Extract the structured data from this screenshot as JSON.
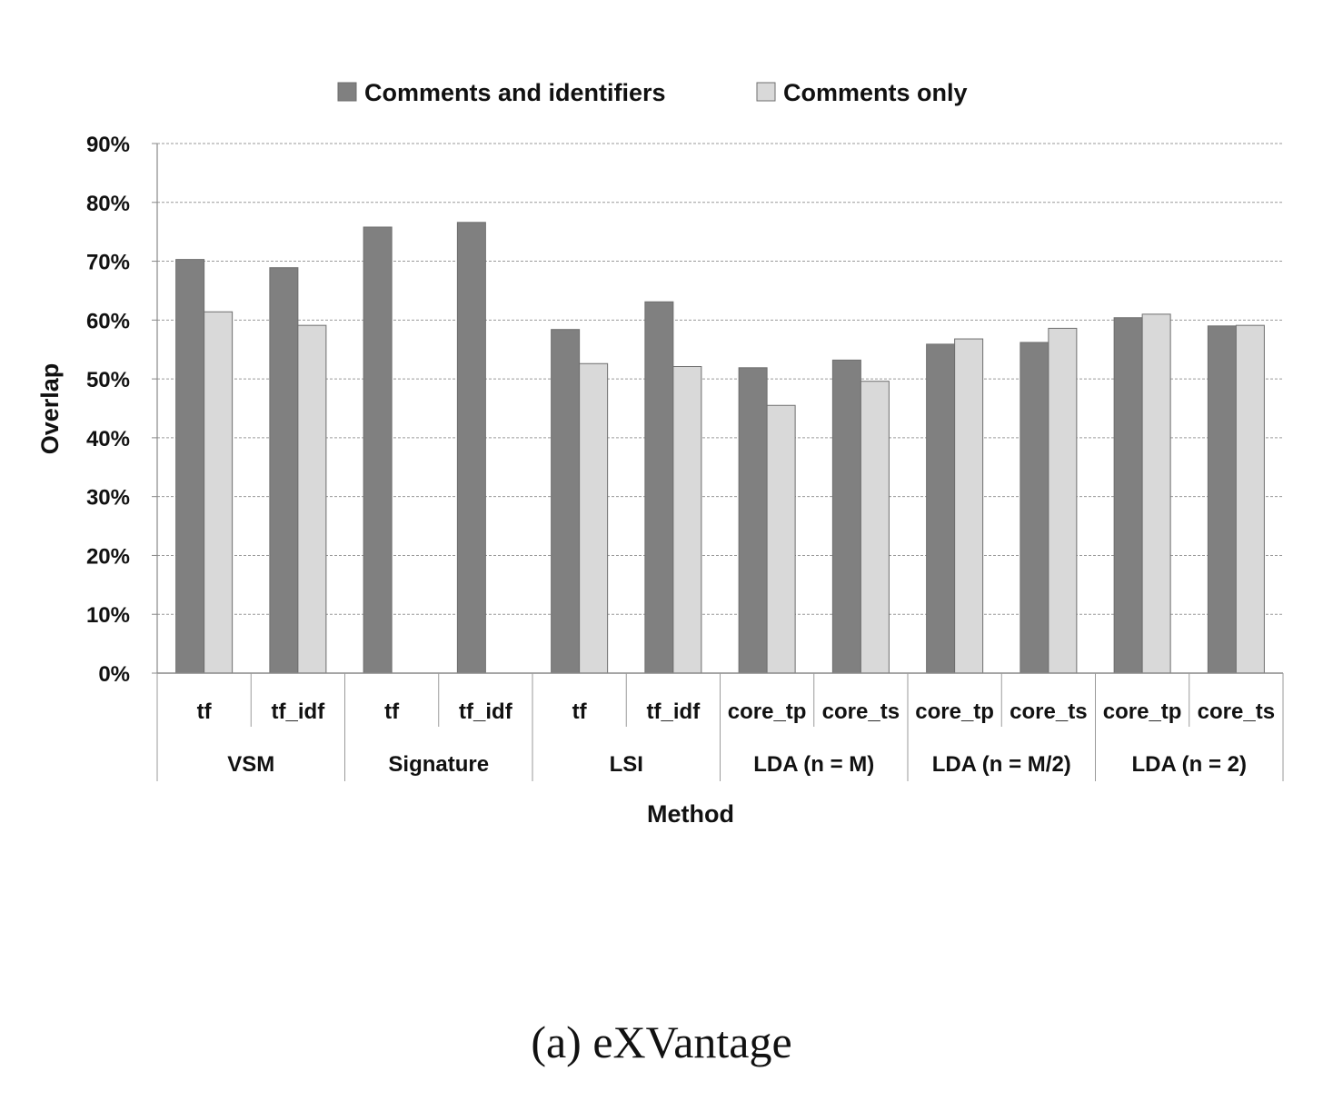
{
  "chart_data": {
    "type": "bar",
    "xlabel": "Method",
    "ylabel": "Overlap",
    "ylim": [
      0,
      90
    ],
    "yticks": [
      "0%",
      "10%",
      "20%",
      "30%",
      "40%",
      "50%",
      "60%",
      "70%",
      "80%",
      "90%"
    ],
    "grid": true,
    "legend_position": "top-center",
    "groups": [
      {
        "name": "VSM",
        "categories": [
          "tf",
          "tf_idf"
        ]
      },
      {
        "name": "Signature",
        "categories": [
          "tf",
          "tf_idf"
        ]
      },
      {
        "name": "LSI",
        "categories": [
          "tf",
          "tf_idf"
        ]
      },
      {
        "name": "LDA (n = M)",
        "categories": [
          "core_tp",
          "core_ts"
        ]
      },
      {
        "name": "LDA (n = M/2)",
        "categories": [
          "core_tp",
          "core_ts"
        ]
      },
      {
        "name": "LDA (n = 2)",
        "categories": [
          "core_tp",
          "core_ts"
        ]
      }
    ],
    "series": [
      {
        "name": "Comments and identifiers",
        "color": "#808080",
        "values": [
          70.3,
          68.9,
          75.8,
          76.6,
          58.4,
          63.1,
          51.9,
          53.2,
          55.9,
          56.2,
          60.4,
          59.0
        ]
      },
      {
        "name": "Comments only",
        "color": "#d9d9d9",
        "values": [
          61.4,
          59.1,
          null,
          null,
          52.6,
          52.1,
          45.5,
          49.6,
          56.8,
          58.6,
          61.0,
          59.1
        ]
      }
    ]
  },
  "caption": "(a)  eXVantage"
}
